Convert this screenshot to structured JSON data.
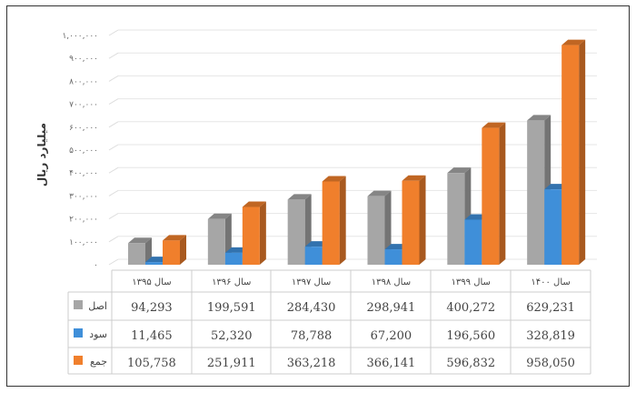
{
  "chart_data": {
    "type": "bar",
    "title": "",
    "ylabel": "میلیارد ریال",
    "xlabel": "",
    "ylim": [
      0,
      1000000
    ],
    "yticks": [
      "۰",
      "۱۰۰,۰۰۰",
      "۲۰۰,۰۰۰",
      "۳۰۰,۰۰۰",
      "۴۰۰,۰۰۰",
      "۵۰۰,۰۰۰",
      "۶۰۰,۰۰۰",
      "۷۰۰,۰۰۰",
      "۸۰۰,۰۰۰",
      "۹۰۰,۰۰۰",
      "۱,۰۰۰,۰۰۰"
    ],
    "categories": [
      "سال ۱۳۹۵",
      "سال ۱۳۹۶",
      "سال ۱۳۹۷",
      "سال ۱۳۹۸",
      "سال ۱۳۹۹",
      "سال ۱۴۰۰"
    ],
    "series": [
      {
        "name": "اصل",
        "color": "#a6a6a6",
        "values": [
          94293,
          199591,
          284430,
          298941,
          400272,
          629231
        ],
        "labels": [
          "94,293",
          "199,591",
          "284,430",
          "298,941",
          "400,272",
          "629,231"
        ]
      },
      {
        "name": "سود",
        "color": "#3f8fd9",
        "values": [
          11465,
          52320,
          78788,
          67200,
          196560,
          328819
        ],
        "labels": [
          "11,465",
          "52,320",
          "78,788",
          "67,200",
          "196,560",
          "328,819"
        ]
      },
      {
        "name": "جمع",
        "color": "#f07f2c",
        "values": [
          105758,
          251911,
          363218,
          366141,
          596832,
          958050
        ],
        "labels": [
          "105,758",
          "251,911",
          "363,218",
          "366,141",
          "596,832",
          "958,050"
        ]
      }
    ],
    "grid": true,
    "legend": "data-table"
  }
}
